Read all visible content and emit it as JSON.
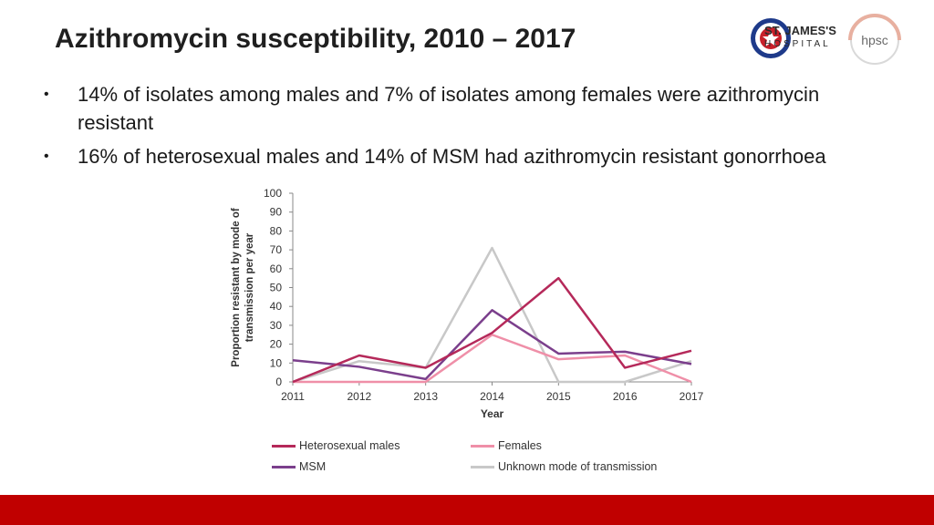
{
  "slide": {
    "title": "Azithromycin susceptibility, 2010 – 2017",
    "bullets": [
      "14% of isolates among males and 7% of isolates among females were azithromycin resistant",
      "16% of heterosexual males and 14% of MSM had azithromycin resistant gonorrhoea"
    ],
    "bullet_symbol": "•",
    "logos": {
      "st_james_line1": "ST. JAMES'S",
      "st_james_line2": "HOSPITAL",
      "hpsc": "hpsc"
    },
    "colors": {
      "footer": "#c00000",
      "title": "#1f1f1f"
    }
  },
  "chart_data": {
    "type": "line",
    "title": "",
    "xlabel": "Year",
    "ylabel_line1": "Proportion resistant by mode of",
    "ylabel_line2": "transmission per year",
    "x": [
      "2011",
      "2012",
      "2013",
      "2014",
      "2015",
      "2016",
      "2017"
    ],
    "ylim": [
      0,
      100
    ],
    "yticks": [
      0,
      10,
      20,
      30,
      40,
      50,
      60,
      70,
      80,
      90,
      100
    ],
    "series": [
      {
        "name": "Heterosexual males",
        "color": "#b5295a",
        "values": [
          0,
          14,
          7.5,
          26,
          55,
          7.5,
          16.5
        ]
      },
      {
        "name": "Females",
        "color": "#ef8fa8",
        "values": [
          0,
          0,
          0,
          25,
          12,
          14,
          0
        ]
      },
      {
        "name": "MSM",
        "color": "#7b3f8c",
        "values": [
          11.5,
          8,
          1.5,
          38,
          15,
          16,
          9.5
        ]
      },
      {
        "name": "Unknown mode of transmission",
        "color": "#c8c8c8",
        "values": [
          0,
          11,
          7.5,
          71,
          0,
          0,
          11
        ]
      }
    ],
    "legend_position": "bottom"
  }
}
